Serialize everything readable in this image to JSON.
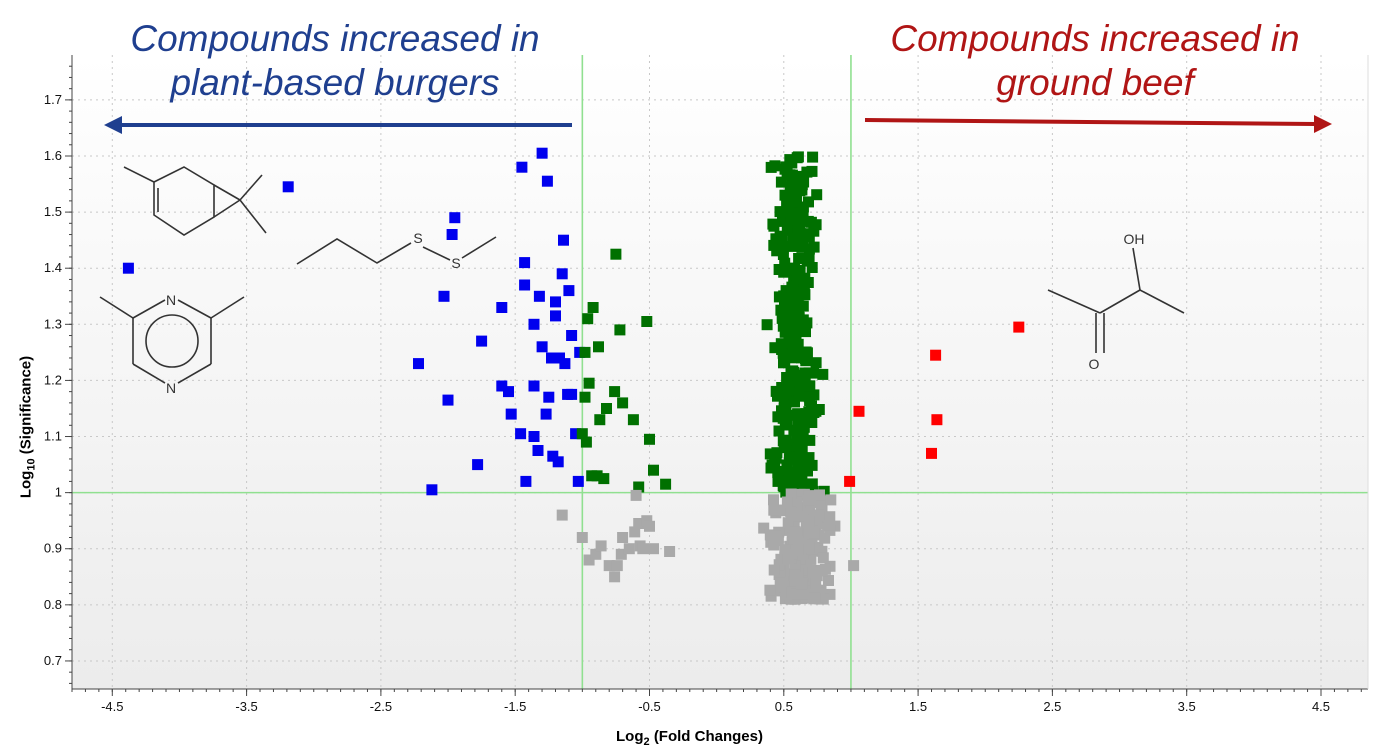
{
  "chart_data": {
    "type": "scatter",
    "title": "",
    "xlabel": {
      "base": "Log",
      "subscript": "2",
      "rest": "(Fold Changes)"
    },
    "ylabel": {
      "base": "Log",
      "subscript": "10",
      "rest": "(Significance)"
    },
    "xlim": [
      -4.8,
      4.85
    ],
    "ylim": [
      0.65,
      1.78
    ],
    "x_ticks": [
      -4.5,
      -3.5,
      -2.5,
      -1.5,
      -0.5,
      0.5,
      1.5,
      2.5,
      3.5,
      4.5
    ],
    "x_tick_labels": [
      "-4.5",
      "-3.5",
      "-2.5",
      "-1.5",
      "-0.5",
      "0.5",
      "1.5",
      "2.5",
      "3.5",
      "4.5"
    ],
    "y_ticks": [
      0.7,
      0.8,
      0.9,
      1.0,
      1.1,
      1.2,
      1.3,
      1.4,
      1.5,
      1.6,
      1.7
    ],
    "y_tick_labels": [
      "0.7",
      "0.8",
      "0.9",
      "1",
      "1.1",
      "1.2",
      "1.3",
      "1.4",
      "1.5",
      "1.6",
      "1.7"
    ],
    "grid": true,
    "threshold_lines": {
      "x": [
        -1,
        1
      ],
      "y": [
        1.0
      ],
      "color": "#90e090"
    },
    "annotations": {
      "left": {
        "lines": [
          "Compounds increased in",
          "plant-based burgers"
        ],
        "color": "#1f3f8f",
        "arrow": "left"
      },
      "right": {
        "lines": [
          "Compounds increased in",
          "ground beef"
        ],
        "color": "#b01515",
        "arrow": "right"
      }
    },
    "molecule_labels": {
      "nitrogen": "N",
      "sulfur": "S",
      "hydroxyl": "OH",
      "oxygen": "O"
    },
    "series": [
      {
        "color": "#0000ee",
        "points": [
          [
            -4.38,
            1.4
          ],
          [
            -3.19,
            1.545
          ],
          [
            -2.22,
            1.23
          ],
          [
            -2.12,
            1.005
          ],
          [
            -2.03,
            1.35
          ],
          [
            -2.0,
            1.165
          ],
          [
            -1.97,
            1.46
          ],
          [
            -1.95,
            1.49
          ],
          [
            -1.78,
            1.05
          ],
          [
            -1.75,
            1.27
          ],
          [
            -1.6,
            1.33
          ],
          [
            -1.6,
            1.19
          ],
          [
            -1.55,
            1.18
          ],
          [
            -1.53,
            1.14
          ],
          [
            -1.46,
            1.105
          ],
          [
            -1.45,
            1.58
          ],
          [
            -1.43,
            1.37
          ],
          [
            -1.43,
            1.41
          ],
          [
            -1.42,
            1.02
          ],
          [
            -1.36,
            1.1
          ],
          [
            -1.36,
            1.19
          ],
          [
            -1.36,
            1.3
          ],
          [
            -1.33,
            1.075
          ],
          [
            -1.32,
            1.35
          ],
          [
            -1.3,
            1.26
          ],
          [
            -1.3,
            1.605
          ],
          [
            -1.27,
            1.14
          ],
          [
            -1.26,
            1.555
          ],
          [
            -1.25,
            1.17
          ],
          [
            -1.23,
            1.24
          ],
          [
            -1.22,
            1.065
          ],
          [
            -1.2,
            1.315
          ],
          [
            -1.2,
            1.34
          ],
          [
            -1.18,
            1.055
          ],
          [
            -1.17,
            1.24
          ],
          [
            -1.15,
            1.39
          ],
          [
            -1.14,
            1.45
          ],
          [
            -1.13,
            1.23
          ],
          [
            -1.11,
            1.175
          ],
          [
            -1.1,
            1.36
          ],
          [
            -1.08,
            1.175
          ],
          [
            -1.08,
            1.28
          ],
          [
            -1.05,
            1.105
          ],
          [
            -1.03,
            1.02
          ],
          [
            -1.02,
            1.25
          ]
        ]
      },
      {
        "color": "#007000",
        "points": [
          [
            -1.0,
            1.105
          ],
          [
            -0.98,
            1.25
          ],
          [
            -0.98,
            1.17
          ],
          [
            -0.97,
            1.09
          ],
          [
            -0.96,
            1.31
          ],
          [
            -0.95,
            1.195
          ],
          [
            -0.93,
            1.03
          ],
          [
            -0.92,
            1.33
          ],
          [
            -0.89,
            1.03
          ],
          [
            -0.88,
            1.26
          ],
          [
            -0.87,
            1.13
          ],
          [
            -0.84,
            1.025
          ],
          [
            -0.82,
            1.15
          ],
          [
            -0.76,
            1.18
          ],
          [
            -0.75,
            1.425
          ],
          [
            -0.72,
            1.29
          ],
          [
            -0.7,
            1.16
          ],
          [
            -0.62,
            1.13
          ],
          [
            -0.58,
            1.01
          ],
          [
            -0.52,
            1.305
          ],
          [
            -0.5,
            1.095
          ],
          [
            -0.47,
            1.04
          ],
          [
            -0.38,
            1.015
          ]
        ]
      },
      {
        "color": "#007000",
        "generate": "dense-column",
        "x_range": [
          0.35,
          0.82
        ],
        "y_range": [
          1.0,
          1.6
        ],
        "count": 300
      },
      {
        "color": "#ff0000",
        "points": [
          [
            0.99,
            1.02
          ],
          [
            1.06,
            1.145
          ],
          [
            1.6,
            1.07
          ],
          [
            1.63,
            1.245
          ],
          [
            1.64,
            1.13
          ],
          [
            2.25,
            1.295
          ]
        ]
      },
      {
        "color": "#a9a9a9",
        "points": [
          [
            -1.15,
            0.96
          ],
          [
            -1.0,
            0.92
          ],
          [
            -0.95,
            0.88
          ],
          [
            -0.9,
            0.89
          ],
          [
            -0.86,
            0.905
          ],
          [
            -0.8,
            0.87
          ],
          [
            -0.76,
            0.85
          ],
          [
            -0.74,
            0.87
          ],
          [
            -0.71,
            0.89
          ],
          [
            -0.7,
            0.92
          ],
          [
            -0.65,
            0.9
          ],
          [
            -0.61,
            0.93
          ],
          [
            -0.6,
            0.995
          ],
          [
            -0.58,
            0.945
          ],
          [
            -0.57,
            0.905
          ],
          [
            -0.55,
            0.9
          ],
          [
            -0.52,
            0.95
          ],
          [
            -0.5,
            0.94
          ],
          [
            -0.47,
            0.9
          ],
          [
            -0.35,
            0.895
          ]
        ]
      },
      {
        "color": "#a9a9a9",
        "generate": "dense-column",
        "x_range": [
          0.3,
          0.95
        ],
        "y_range": [
          0.81,
          0.998
        ],
        "count": 230
      },
      {
        "color": "#a9a9a9",
        "points": [
          [
            1.02,
            0.87
          ]
        ]
      }
    ]
  }
}
